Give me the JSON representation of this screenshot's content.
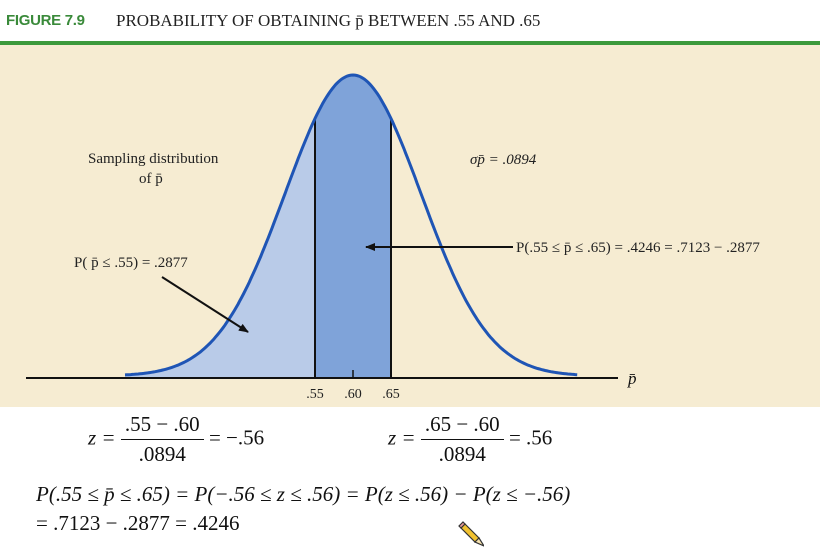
{
  "figure": {
    "label": "FIGURE 7.9",
    "title": "PROBABILITY OF OBTAINING p̄ BETWEEN .55 AND .65",
    "label_color": "#3a8a3a",
    "rule_color": "#3c9a3c",
    "panel_color": "#f6ecd2"
  },
  "chart_data": {
    "type": "area",
    "distribution": "normal",
    "mean": 0.6,
    "std_error": 0.0894,
    "axis_label": "p̄",
    "ticks": [
      ".55",
      ".60",
      ".65"
    ],
    "tick_values": [
      0.55,
      0.6,
      0.65
    ],
    "shaded_regions": [
      {
        "from": 0.3,
        "to": 0.55,
        "probability": 0.2877,
        "color": "#b9cbe8"
      },
      {
        "from": 0.55,
        "to": 0.65,
        "probability": 0.4246,
        "color": "#7fa3d9"
      }
    ],
    "curve_color": "#1f55b5",
    "annotations": {
      "sampling_line1": "Sampling distribution",
      "sampling_line2": "of p̄",
      "sigma": "σp̄ = .0894",
      "left_prob": "P( p̄ ≤ .55) = .2877",
      "mid_prob": "P(.55 ≤ p̄ ≤ .65) = .4246 = .7123 − .2877"
    }
  },
  "equations": {
    "z1": {
      "lhs": "z =",
      "numerator": ".55 − .60",
      "denominator": ".0894",
      "result": "= −.56"
    },
    "z2": {
      "lhs": "z =",
      "numerator": ".65 − .60",
      "denominator": ".0894",
      "result": "= .56"
    },
    "line1": "P(.55 ≤ p̄ ≤ .65) = P(−.56 ≤ z ≤ .56) = P(z ≤ .56) − P(z ≤ −.56)",
    "line2": "= .7123 − .2877 = .4246"
  },
  "icons": {
    "cursor": "pencil-icon"
  }
}
